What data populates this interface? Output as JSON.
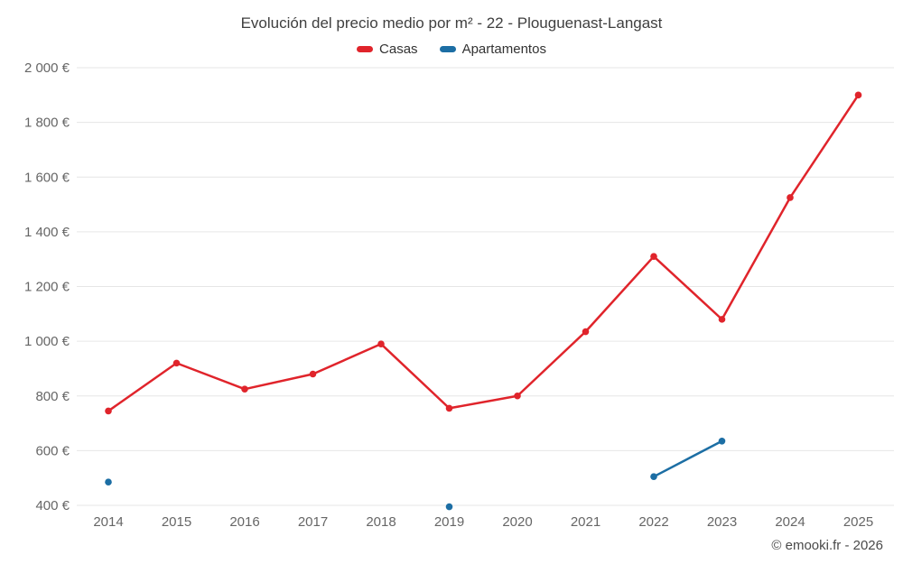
{
  "header": {
    "title": "Evolución del precio medio por m² - 22 - Plouguenast-Langast"
  },
  "footer": {
    "credit": "© emooki.fr - 2026"
  },
  "colors": {
    "casas": "#e0242b",
    "apartamentos": "#1c6ea4",
    "grid": "#e6e6e6",
    "axis_text": "#666666"
  },
  "chart_data": {
    "type": "line",
    "title": "Evolución del precio medio por m² - 22 - Plouguenast-Langast",
    "x": [
      2014,
      2015,
      2016,
      2017,
      2018,
      2019,
      2020,
      2021,
      2022,
      2023,
      2024,
      2025
    ],
    "series": [
      {
        "name": "Casas",
        "color": "#e0242b",
        "values": [
          745,
          920,
          825,
          880,
          990,
          755,
          800,
          1035,
          1310,
          1080,
          1525,
          1900
        ]
      },
      {
        "name": "Apartamentos",
        "color": "#1c6ea4",
        "values": [
          485,
          null,
          null,
          null,
          null,
          395,
          null,
          null,
          505,
          635,
          null,
          null
        ]
      }
    ],
    "xlabel": "",
    "ylabel": "",
    "ylim": [
      400,
      2000
    ],
    "ytick_step": 200,
    "ytick_format": "{value} €",
    "grid": "horizontal",
    "legend_position": "top"
  }
}
